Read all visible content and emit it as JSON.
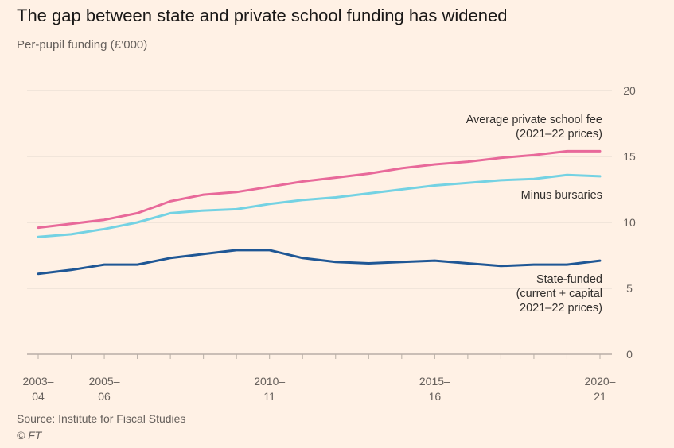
{
  "title": "The gap between state and private school funding has widened",
  "subtitle": "Per-pupil funding (£’000)",
  "source": "Source: Institute for Fiscal Studies",
  "credit": "© FT",
  "colors": {
    "background": "#fff1e5",
    "private_fee": "#e8699a",
    "minus_bursaries": "#74d2e3",
    "state_funded": "#1f5795",
    "grid": "#e3d9cf",
    "axis": "#b8aea6",
    "text": "#66605c"
  },
  "chart_data": {
    "type": "line",
    "x": [
      "2003–04",
      "2004–05",
      "2005–06",
      "2006–07",
      "2007–08",
      "2008–09",
      "2009–10",
      "2010–11",
      "2011–12",
      "2012–13",
      "2013–14",
      "2014–15",
      "2015–16",
      "2016–17",
      "2017–18",
      "2018–19",
      "2019–20",
      "2020–21"
    ],
    "x_tick_labels": [
      {
        "x": "2003–04",
        "lines": [
          "2003–",
          "04"
        ]
      },
      {
        "x": "2005–06",
        "lines": [
          "2005–",
          "06"
        ]
      },
      {
        "x": "2010–11",
        "lines": [
          "2010–",
          "11"
        ]
      },
      {
        "x": "2015–16",
        "lines": [
          "2015–",
          "16"
        ]
      },
      {
        "x": "2020–21",
        "lines": [
          "2020–",
          "21"
        ]
      }
    ],
    "y_ticks": [
      0,
      5,
      10,
      15,
      20
    ],
    "ylim": [
      0,
      20
    ],
    "grid": true,
    "series": [
      {
        "name": "Average private school fee (2021–22 prices)",
        "label_lines": [
          "Average private school fee",
          "(2021–22 prices)"
        ],
        "color": "#e8699a",
        "values": [
          9.6,
          9.9,
          10.2,
          10.7,
          11.6,
          12.1,
          12.3,
          12.7,
          13.1,
          13.4,
          13.7,
          14.1,
          14.4,
          14.6,
          14.9,
          15.1,
          15.4,
          15.4
        ]
      },
      {
        "name": "Minus bursaries",
        "label_lines": [
          "Minus bursaries"
        ],
        "color": "#74d2e3",
        "values": [
          8.9,
          9.1,
          9.5,
          10.0,
          10.7,
          10.9,
          11.0,
          11.4,
          11.7,
          11.9,
          12.2,
          12.5,
          12.8,
          13.0,
          13.2,
          13.3,
          13.6,
          13.5
        ]
      },
      {
        "name": "State-funded (current + capital 2021–22 prices)",
        "label_lines": [
          "State-funded",
          "(current + capital",
          "2021–22 prices)"
        ],
        "color": "#1f5795",
        "values": [
          6.1,
          6.4,
          6.8,
          6.8,
          7.3,
          7.6,
          7.9,
          7.9,
          7.3,
          7.0,
          6.9,
          7.0,
          7.1,
          6.9,
          6.7,
          6.8,
          6.8,
          7.1
        ]
      }
    ]
  }
}
